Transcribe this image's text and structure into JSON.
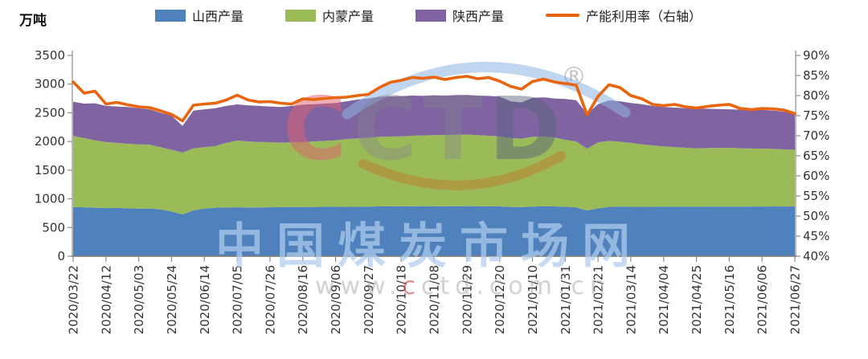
{
  "legend": [
    {
      "label": "山西产量",
      "color": "#4f81bd",
      "marker": "swatch"
    },
    {
      "label": "内蒙产量",
      "color": "#9bbb59",
      "marker": "swatch"
    },
    {
      "label": "陕西产量",
      "color": "#8064a2",
      "marker": "swatch"
    },
    {
      "label": "产能利用率（右轴）",
      "color": "#e8650d",
      "marker": "line"
    }
  ],
  "watermark": {
    "letters": [
      "C",
      "C",
      "T",
      "D"
    ],
    "reg": "®",
    "site_name": "中国煤炭市场网",
    "url_prefix": "www.",
    "url_accent": "c",
    "url_rest": "ctd.com.cn"
  },
  "chart_data": {
    "type": "area",
    "subtype": "stacked-area-with-line-overlay",
    "grid": false,
    "legend_position": "top",
    "left_axis": {
      "title": "万吨",
      "min": 0,
      "max": 3500,
      "step": 500
    },
    "right_axis": {
      "min": 40,
      "max": 90,
      "step": 5,
      "suffix": "%"
    },
    "x_tick_every": 3,
    "x": [
      "2020/03/22",
      "2020/03/29",
      "2020/04/05",
      "2020/04/12",
      "2020/04/19",
      "2020/04/26",
      "2020/05/03",
      "2020/05/10",
      "2020/05/17",
      "2020/05/24",
      "2020/05/31",
      "2020/06/07",
      "2020/06/14",
      "2020/06/21",
      "2020/06/28",
      "2020/07/05",
      "2020/07/12",
      "2020/07/19",
      "2020/07/26",
      "2020/08/02",
      "2020/08/09",
      "2020/08/16",
      "2020/08/23",
      "2020/08/30",
      "2020/09/06",
      "2020/09/13",
      "2020/09/20",
      "2020/09/27",
      "2020/10/04",
      "2020/10/11",
      "2020/10/18",
      "2020/10/25",
      "2020/11/01",
      "2020/11/08",
      "2020/11/15",
      "2020/11/22",
      "2020/11/29",
      "2020/12/06",
      "2020/12/13",
      "2020/12/20",
      "2020/12/27",
      "2021/01/03",
      "2021/01/10",
      "2021/01/17",
      "2021/01/24",
      "2021/01/31",
      "2021/02/07",
      "2021/02/14",
      "2021/02/21",
      "2021/02/28",
      "2021/03/07",
      "2021/03/14",
      "2021/03/21",
      "2021/03/28",
      "2021/04/04",
      "2021/04/11",
      "2021/04/18",
      "2021/04/25",
      "2021/05/02",
      "2021/05/09",
      "2021/05/16",
      "2021/05/23",
      "2021/05/30",
      "2021/06/06",
      "2021/06/13",
      "2021/06/20",
      "2021/06/27"
    ],
    "series": [
      {
        "name": "山西产量",
        "type": "area",
        "stack": true,
        "axis": "left",
        "color": "#4f81bd",
        "values": [
          858,
          852,
          845,
          838,
          842,
          835,
          830,
          832,
          815,
          780,
          728,
          800,
          830,
          845,
          850,
          852,
          848,
          850,
          853,
          855,
          858,
          860,
          858,
          862,
          865,
          860,
          862,
          865,
          868,
          870,
          872,
          870,
          873,
          872,
          870,
          872,
          874,
          872,
          870,
          868,
          860,
          855,
          865,
          870,
          868,
          862,
          850,
          798,
          835,
          860,
          865,
          862,
          860,
          862,
          864,
          862,
          865,
          863,
          866,
          864,
          866,
          864,
          867,
          866,
          868,
          867,
          868
        ]
      },
      {
        "name": "内蒙产量",
        "type": "area",
        "stack": true,
        "axis": "left",
        "color": "#9bbb59",
        "values": [
          1238,
          1208,
          1175,
          1152,
          1133,
          1125,
          1120,
          1113,
          1085,
          1075,
          1078,
          1080,
          1070,
          1075,
          1125,
          1164,
          1152,
          1142,
          1135,
          1125,
          1127,
          1130,
          1142,
          1148,
          1155,
          1180,
          1193,
          1200,
          1212,
          1216,
          1218,
          1230,
          1232,
          1238,
          1242,
          1246,
          1246,
          1238,
          1230,
          1222,
          1200,
          1195,
          1215,
          1216,
          1202,
          1168,
          1150,
          1078,
          1150,
          1150,
          1130,
          1113,
          1090,
          1068,
          1051,
          1038,
          1025,
          1017,
          1019,
          1024,
          1024,
          1018,
          1011,
          1009,
          1002,
          995,
          987
        ]
      },
      {
        "name": "陕西产量",
        "type": "area",
        "stack": true,
        "axis": "left",
        "color": "#8064a2",
        "values": [
          596,
          600,
          645,
          630,
          635,
          640,
          630,
          615,
          600,
          595,
          466,
          660,
          660,
          660,
          645,
          630,
          630,
          628,
          622,
          620,
          635,
          650,
          650,
          650,
          650,
          660,
          675,
          685,
          700,
          700,
          700,
          700,
          690,
          695,
          688,
          690,
          690,
          690,
          695,
          690,
          640,
          630,
          680,
          684,
          680,
          710,
          720,
          606,
          665,
          706,
          705,
          695,
          700,
          690,
          685,
          690,
          690,
          696,
          685,
          677,
          670,
          673,
          672,
          677,
          670,
          658,
          651
        ]
      },
      {
        "name": "产能利用率（右轴）",
        "type": "line",
        "stack": false,
        "axis": "right",
        "color": "#e8650d",
        "values": [
          83.4,
          80.6,
          81.1,
          77.9,
          78.3,
          77.7,
          77.2,
          77.0,
          76.2,
          75.3,
          73.7,
          77.6,
          77.9,
          78.1,
          78.9,
          80.1,
          78.9,
          78.4,
          78.5,
          78.1,
          77.9,
          79.2,
          79.0,
          79.3,
          79.5,
          79.6,
          80.0,
          80.3,
          82.0,
          83.3,
          83.8,
          84.5,
          84.3,
          84.6,
          84.0,
          84.5,
          84.8,
          84.2,
          84.5,
          83.6,
          82.3,
          81.6,
          83.5,
          84.1,
          83.4,
          83.0,
          82.6,
          75.2,
          79.8,
          82.7,
          82.0,
          80.0,
          79.2,
          77.8,
          77.5,
          77.8,
          77.2,
          76.9,
          77.3,
          77.6,
          77.8,
          76.8,
          76.5,
          76.8,
          76.7,
          76.4,
          75.5
        ]
      }
    ]
  }
}
